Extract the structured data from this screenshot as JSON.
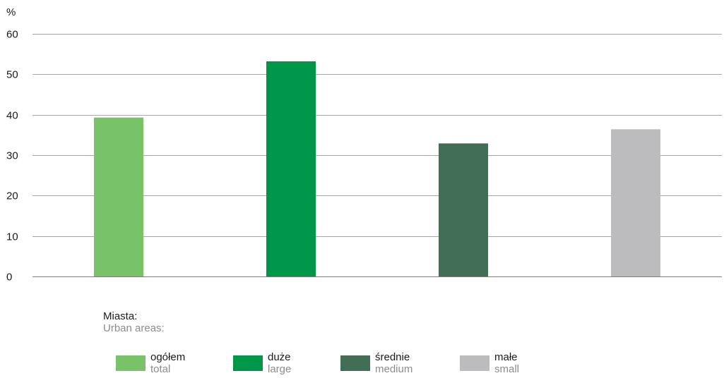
{
  "chart_data": {
    "type": "bar",
    "ylabel": "%",
    "ylim": [
      0,
      60
    ],
    "yticks": [
      0,
      10,
      20,
      30,
      40,
      50,
      60
    ],
    "grid": true,
    "categories": [
      "ogółem",
      "duże",
      "średnie",
      "małe"
    ],
    "values": [
      39.3,
      53.2,
      32.9,
      36.4
    ],
    "colors": [
      "#78c367",
      "#009649",
      "#436e56",
      "#bcbcbe"
    ],
    "legend": {
      "title": "Miasta:",
      "subtitle": "Urban areas:",
      "placement": "bottom",
      "entries": [
        {
          "label": "ogółem",
          "sublabel": "total",
          "color": "#78c367"
        },
        {
          "label": "duże",
          "sublabel": "large",
          "color": "#009649"
        },
        {
          "label": "średnie",
          "sublabel": "medium",
          "color": "#436e56"
        },
        {
          "label": "małe",
          "sublabel": "small",
          "color": "#bcbcbe"
        }
      ]
    }
  }
}
